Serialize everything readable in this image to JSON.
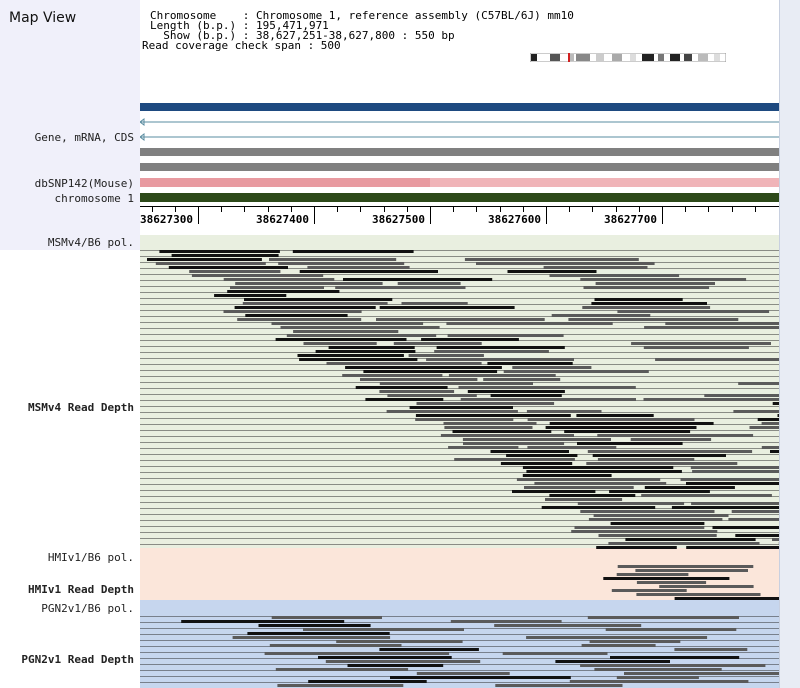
{
  "app": {
    "title": "Map View"
  },
  "info": {
    "chromosome_line": "Chromosome    : Chromosome 1, reference assembly (C57BL/6J) mm10",
    "length_line": "Length (b.p.) : 195,471,971",
    "show_line": "  Show (b.p.) : 38,627,251-38,627,800 : 550 bp",
    "coverage_line": "Read coverage check span : 500"
  },
  "tracks": {
    "gene": "Gene, mRNA, CDS",
    "dbsnp": "dbSNP142(Mouse)",
    "chrom": "chromosome 1",
    "msm_pol": "MSMv4/B6 pol.",
    "msm_depth": "MSMv4 Read Depth",
    "hmi_pol": "HMIv1/B6 pol.",
    "hmi_depth": "HMIv1 Read Depth",
    "pgn_pol": "PGN2v1/B6 pol.",
    "pgn_depth": "PGN2v1 Read Depth"
  },
  "ruler": {
    "ticks": [
      "38627300",
      "38627400",
      "38627500",
      "38627600",
      "38627700"
    ]
  },
  "colors": {
    "gene_blue": "#1e4a80",
    "snp_pink": "#e89aa0",
    "chrom_green": "#2e4a1a",
    "msm_bg": "#e9efe0",
    "hmi_bg": "#fbe6da",
    "pgn_bg": "#c6d6ee",
    "read_gray": "#5a5a5a",
    "read_dark": "#111111"
  }
}
